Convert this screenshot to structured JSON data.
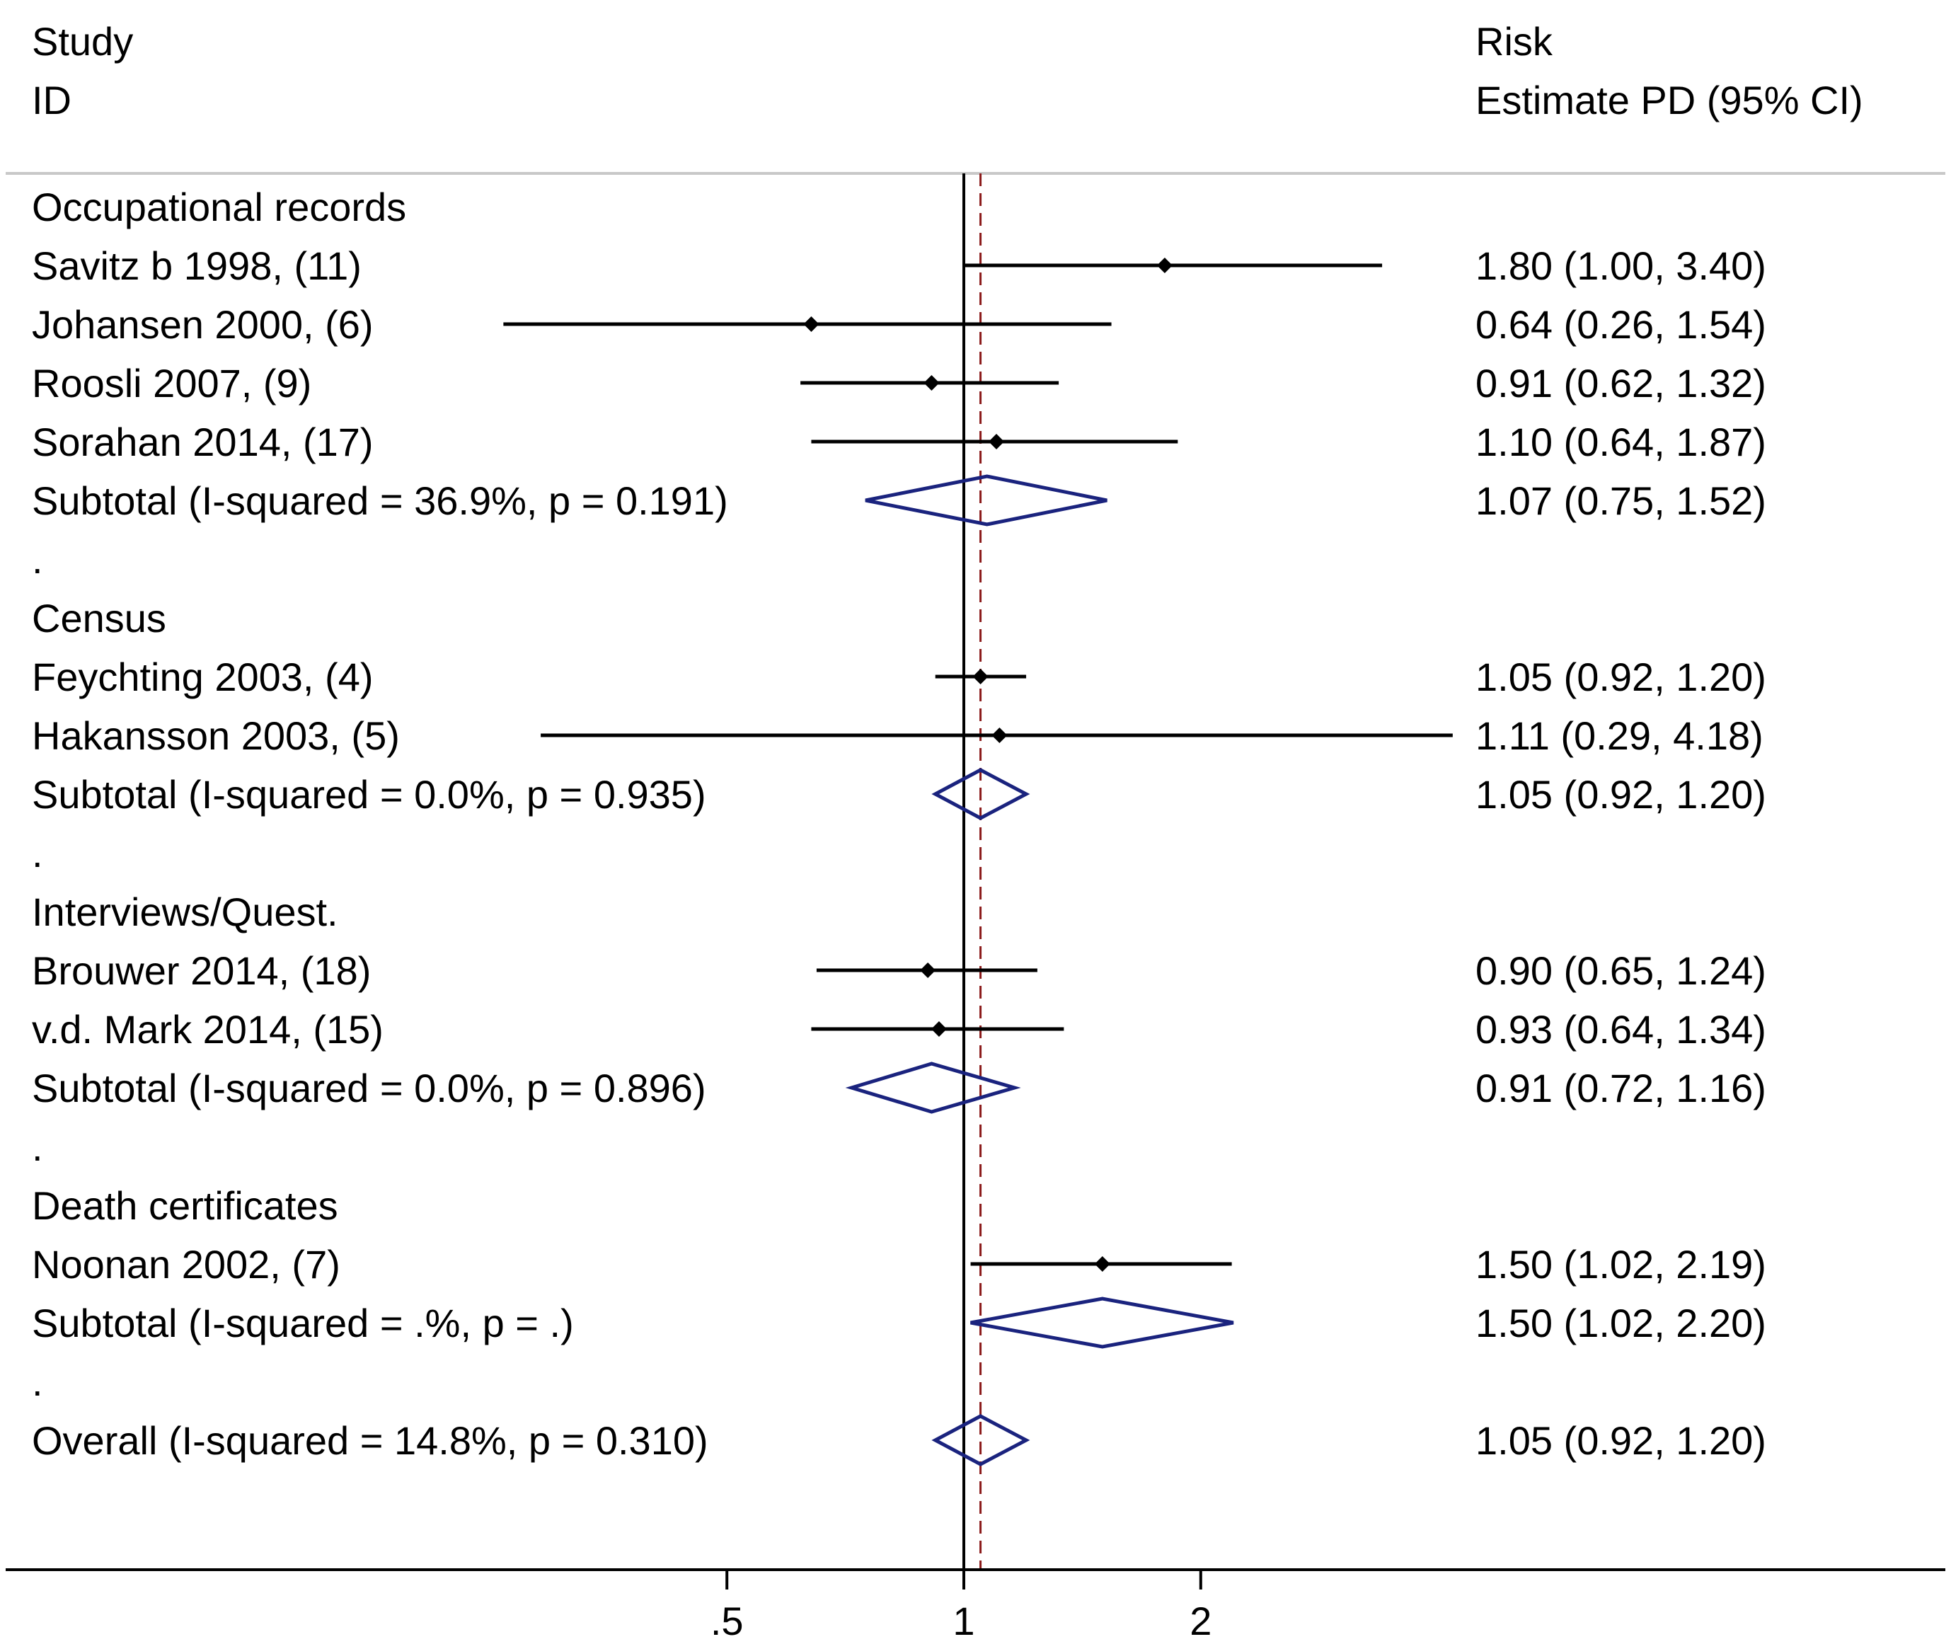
{
  "header": {
    "col1_line1": "Study",
    "col1_line2": "ID",
    "col2_line1": "Risk",
    "col2_line2": "Estimate PD (95% CI)"
  },
  "colors": {
    "study_line": "#000000",
    "diamond": "#1a237e",
    "ref_line": "#000000",
    "overall_line": "#8b1a1a",
    "separator": "#c8c8c8"
  },
  "chart_data": {
    "type": "forest",
    "x_scale": "log",
    "x_ticks": [
      {
        "value": 0.5,
        "label": ".5"
      },
      {
        "value": 1,
        "label": "1"
      },
      {
        "value": 2,
        "label": "2"
      }
    ],
    "null_line": 1,
    "overall_estimate": 1.05,
    "rows": [
      {
        "kind": "group",
        "label": "Occupational records"
      },
      {
        "kind": "study",
        "label": "Savitz b 1998, (11)",
        "est": 1.8,
        "lo": 1.0,
        "hi": 3.4,
        "text": "1.80 (1.00, 3.40)"
      },
      {
        "kind": "study",
        "label": "Johansen 2000, (6)",
        "est": 0.64,
        "lo": 0.26,
        "hi": 1.54,
        "text": "0.64 (0.26, 1.54)"
      },
      {
        "kind": "study",
        "label": "Roosli 2007, (9)",
        "est": 0.91,
        "lo": 0.62,
        "hi": 1.32,
        "text": "0.91 (0.62, 1.32)"
      },
      {
        "kind": "study",
        "label": "Sorahan 2014, (17)",
        "est": 1.1,
        "lo": 0.64,
        "hi": 1.87,
        "text": "1.10 (0.64, 1.87)"
      },
      {
        "kind": "subtotal",
        "label": "Subtotal  (I-squared = 36.9%, p = 0.191)",
        "est": 1.07,
        "lo": 0.75,
        "hi": 1.52,
        "text": "1.07 (0.75, 1.52)"
      },
      {
        "kind": "dot",
        "label": "."
      },
      {
        "kind": "group",
        "label": "Census"
      },
      {
        "kind": "study",
        "label": "Feychting 2003, (4)",
        "est": 1.05,
        "lo": 0.92,
        "hi": 1.2,
        "text": "1.05 (0.92, 1.20)"
      },
      {
        "kind": "study",
        "label": "Hakansson 2003, (5)",
        "est": 1.11,
        "lo": 0.29,
        "hi": 4.18,
        "text": "1.11 (0.29, 4.18)"
      },
      {
        "kind": "subtotal",
        "label": "Subtotal  (I-squared = 0.0%, p = 0.935)",
        "est": 1.05,
        "lo": 0.92,
        "hi": 1.2,
        "text": "1.05 (0.92, 1.20)"
      },
      {
        "kind": "dot",
        "label": "."
      },
      {
        "kind": "group",
        "label": "Interviews/Quest."
      },
      {
        "kind": "study",
        "label": "Brouwer 2014, (18)",
        "est": 0.9,
        "lo": 0.65,
        "hi": 1.24,
        "text": "0.90 (0.65, 1.24)"
      },
      {
        "kind": "study",
        "label": "v.d. Mark 2014, (15)",
        "est": 0.93,
        "lo": 0.64,
        "hi": 1.34,
        "text": "0.93 (0.64, 1.34)"
      },
      {
        "kind": "subtotal",
        "label": "Subtotal  (I-squared = 0.0%, p = 0.896)",
        "est": 0.91,
        "lo": 0.72,
        "hi": 1.16,
        "text": "0.91 (0.72, 1.16)"
      },
      {
        "kind": "dot",
        "label": "."
      },
      {
        "kind": "group",
        "label": "Death certificates"
      },
      {
        "kind": "study",
        "label": "Noonan 2002, (7)",
        "est": 1.5,
        "lo": 1.02,
        "hi": 2.19,
        "text": "1.50 (1.02, 2.19)"
      },
      {
        "kind": "subtotal",
        "label": "Subtotal  (I-squared = .%, p = .)",
        "est": 1.5,
        "lo": 1.02,
        "hi": 2.2,
        "text": "1.50 (1.02, 2.20)"
      },
      {
        "kind": "dot",
        "label": "."
      },
      {
        "kind": "overall",
        "label": "Overall  (I-squared = 14.8%, p = 0.310)",
        "est": 1.05,
        "lo": 0.92,
        "hi": 1.2,
        "text": "1.05 (0.92, 1.20)"
      }
    ]
  }
}
